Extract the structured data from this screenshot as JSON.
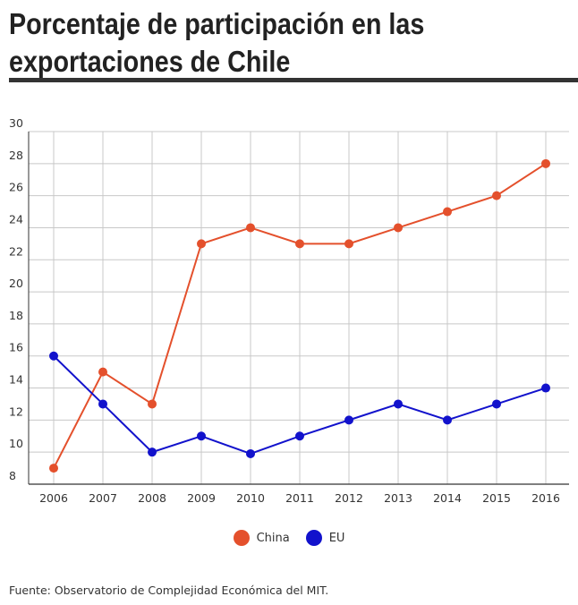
{
  "chart_data": {
    "type": "line",
    "title": "Porcentaje de participación en las exportaciones de Chile",
    "x": [
      "2006",
      "2007",
      "2008",
      "2009",
      "2010",
      "2011",
      "2012",
      "2013",
      "2014",
      "2015",
      "2016"
    ],
    "ylim": [
      8,
      30
    ],
    "yticks": [
      8,
      10,
      12,
      14,
      16,
      18,
      20,
      22,
      24,
      26,
      28,
      30
    ],
    "grid": true,
    "legend_position": "bottom-center",
    "series": [
      {
        "name": "China",
        "color": "#e4502c",
        "values": [
          9,
          15,
          13,
          23,
          24,
          23,
          23,
          24,
          25,
          26,
          28
        ]
      },
      {
        "name": "EU",
        "color": "#1212cc",
        "values": [
          16,
          13,
          10,
          11,
          9.9,
          11,
          12,
          13,
          12,
          13,
          14
        ]
      }
    ]
  },
  "source": "Fuente: Observatorio de Complejidad Económica del MIT."
}
